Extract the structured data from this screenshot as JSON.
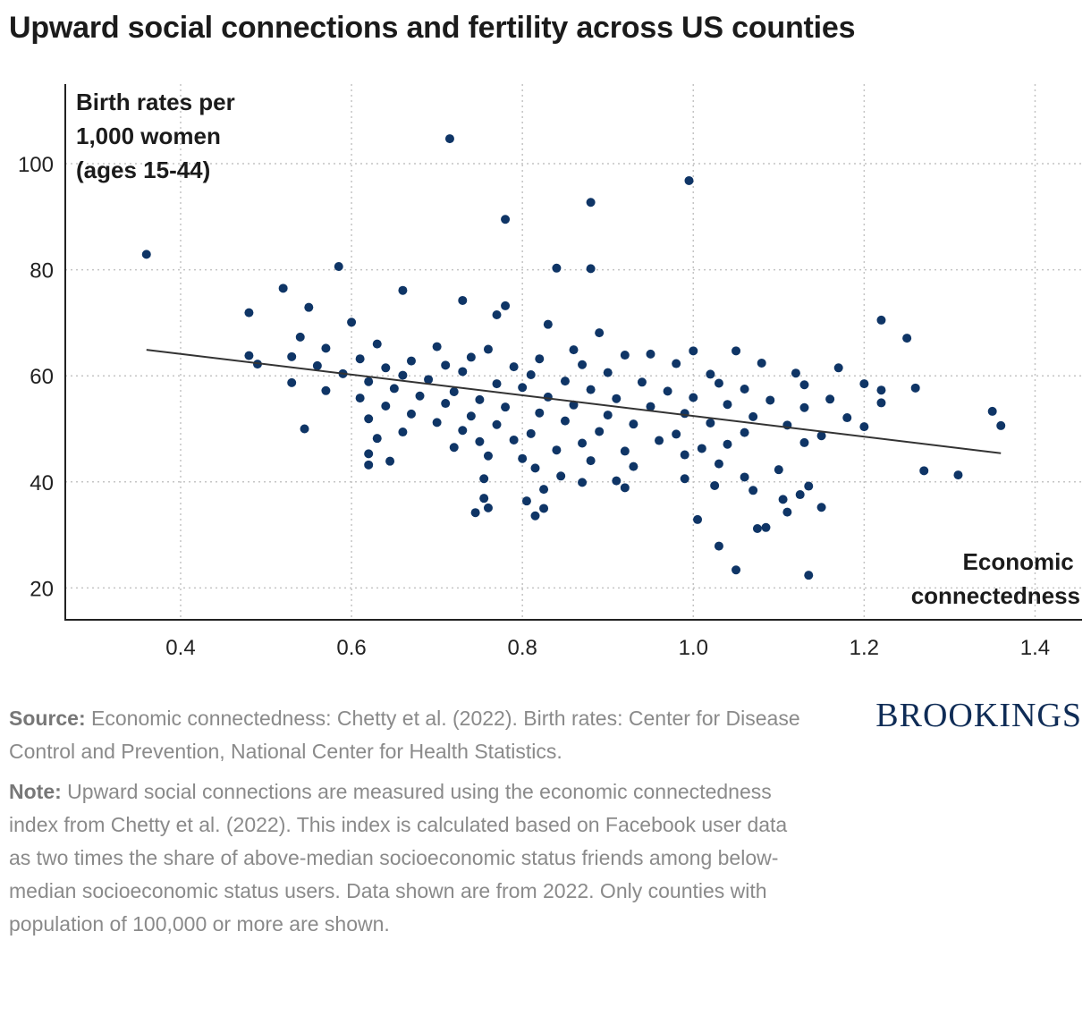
{
  "title": "Upward social connections and fertility across US counties",
  "chart_data": {
    "type": "scatter",
    "title": "Upward social connections and fertility across US counties",
    "ylabel_lines": [
      "Birth rates per",
      "1,000 women",
      "(ages 15-44)"
    ],
    "xlabel_lines": [
      "Economic",
      "connectedness"
    ],
    "xlim": [
      0.265,
      1.455
    ],
    "ylim": [
      14,
      115
    ],
    "x_ticks": [
      0.4,
      0.6,
      0.8,
      1.0,
      1.2,
      1.4
    ],
    "x_tick_labels": [
      "0.4",
      "0.6",
      "0.8",
      "1.0",
      "1.2",
      "1.4"
    ],
    "y_ticks": [
      20,
      40,
      60,
      80,
      100
    ],
    "y_tick_labels": [
      "20",
      "40",
      "60",
      "80",
      "100"
    ],
    "grid": true,
    "point_color": "#0f3566",
    "trendline": {
      "x": [
        0.36,
        1.36
      ],
      "y": [
        64.9,
        45.4
      ],
      "color": "#333333"
    },
    "points": [
      {
        "x": 0.715,
        "y": 104.7
      },
      {
        "x": 0.995,
        "y": 96.8
      },
      {
        "x": 0.88,
        "y": 92.7
      },
      {
        "x": 0.78,
        "y": 89.5
      },
      {
        "x": 0.36,
        "y": 82.9
      },
      {
        "x": 0.585,
        "y": 80.6
      },
      {
        "x": 0.84,
        "y": 80.3
      },
      {
        "x": 0.88,
        "y": 80.2
      },
      {
        "x": 0.52,
        "y": 76.5
      },
      {
        "x": 0.66,
        "y": 76.1
      },
      {
        "x": 0.73,
        "y": 74.2
      },
      {
        "x": 0.55,
        "y": 72.9
      },
      {
        "x": 0.78,
        "y": 73.2
      },
      {
        "x": 0.48,
        "y": 71.9
      },
      {
        "x": 0.77,
        "y": 71.5
      },
      {
        "x": 1.22,
        "y": 70.5
      },
      {
        "x": 0.6,
        "y": 70.1
      },
      {
        "x": 0.83,
        "y": 69.7
      },
      {
        "x": 1.25,
        "y": 67.1
      },
      {
        "x": 0.89,
        "y": 68.1
      },
      {
        "x": 0.54,
        "y": 67.3
      },
      {
        "x": 0.63,
        "y": 66.0
      },
      {
        "x": 0.7,
        "y": 65.5
      },
      {
        "x": 0.57,
        "y": 65.2
      },
      {
        "x": 0.76,
        "y": 65.0
      },
      {
        "x": 0.86,
        "y": 64.9
      },
      {
        "x": 1.0,
        "y": 64.7
      },
      {
        "x": 1.05,
        "y": 64.7
      },
      {
        "x": 0.48,
        "y": 63.8
      },
      {
        "x": 0.53,
        "y": 63.6
      },
      {
        "x": 0.61,
        "y": 63.2
      },
      {
        "x": 0.67,
        "y": 62.8
      },
      {
        "x": 0.74,
        "y": 63.5
      },
      {
        "x": 0.82,
        "y": 63.2
      },
      {
        "x": 0.92,
        "y": 63.9
      },
      {
        "x": 0.95,
        "y": 64.1
      },
      {
        "x": 0.49,
        "y": 62.2
      },
      {
        "x": 0.56,
        "y": 61.9
      },
      {
        "x": 0.64,
        "y": 61.5
      },
      {
        "x": 0.71,
        "y": 62.0
      },
      {
        "x": 0.79,
        "y": 61.7
      },
      {
        "x": 0.87,
        "y": 62.1
      },
      {
        "x": 0.98,
        "y": 62.3
      },
      {
        "x": 1.17,
        "y": 61.5
      },
      {
        "x": 1.08,
        "y": 62.4
      },
      {
        "x": 0.59,
        "y": 60.4
      },
      {
        "x": 0.66,
        "y": 60.1
      },
      {
        "x": 0.73,
        "y": 60.8
      },
      {
        "x": 0.81,
        "y": 60.2
      },
      {
        "x": 0.9,
        "y": 60.6
      },
      {
        "x": 1.02,
        "y": 60.3
      },
      {
        "x": 1.12,
        "y": 60.5
      },
      {
        "x": 0.53,
        "y": 58.7
      },
      {
        "x": 0.62,
        "y": 58.9
      },
      {
        "x": 0.69,
        "y": 59.3
      },
      {
        "x": 0.77,
        "y": 58.5
      },
      {
        "x": 0.85,
        "y": 59.0
      },
      {
        "x": 0.94,
        "y": 58.8
      },
      {
        "x": 1.03,
        "y": 58.6
      },
      {
        "x": 1.13,
        "y": 58.3
      },
      {
        "x": 1.2,
        "y": 58.5
      },
      {
        "x": 0.57,
        "y": 57.2
      },
      {
        "x": 0.65,
        "y": 57.6
      },
      {
        "x": 0.72,
        "y": 57.0
      },
      {
        "x": 0.8,
        "y": 57.8
      },
      {
        "x": 0.88,
        "y": 57.4
      },
      {
        "x": 0.97,
        "y": 57.1
      },
      {
        "x": 1.06,
        "y": 57.5
      },
      {
        "x": 1.26,
        "y": 57.7
      },
      {
        "x": 1.22,
        "y": 57.3
      },
      {
        "x": 0.61,
        "y": 55.8
      },
      {
        "x": 0.68,
        "y": 56.2
      },
      {
        "x": 0.75,
        "y": 55.5
      },
      {
        "x": 0.83,
        "y": 56.0
      },
      {
        "x": 0.91,
        "y": 55.7
      },
      {
        "x": 1.0,
        "y": 55.9
      },
      {
        "x": 1.09,
        "y": 55.4
      },
      {
        "x": 1.16,
        "y": 55.6
      },
      {
        "x": 0.64,
        "y": 54.3
      },
      {
        "x": 0.71,
        "y": 54.8
      },
      {
        "x": 0.78,
        "y": 54.1
      },
      {
        "x": 0.86,
        "y": 54.5
      },
      {
        "x": 0.95,
        "y": 54.2
      },
      {
        "x": 1.04,
        "y": 54.6
      },
      {
        "x": 1.13,
        "y": 54.0
      },
      {
        "x": 1.22,
        "y": 54.9
      },
      {
        "x": 1.35,
        "y": 53.3
      },
      {
        "x": 0.67,
        "y": 52.8
      },
      {
        "x": 0.74,
        "y": 52.4
      },
      {
        "x": 0.82,
        "y": 53.0
      },
      {
        "x": 0.9,
        "y": 52.6
      },
      {
        "x": 0.99,
        "y": 52.9
      },
      {
        "x": 1.07,
        "y": 52.3
      },
      {
        "x": 1.18,
        "y": 52.1
      },
      {
        "x": 0.62,
        "y": 51.9
      },
      {
        "x": 0.7,
        "y": 51.2
      },
      {
        "x": 0.77,
        "y": 50.8
      },
      {
        "x": 0.85,
        "y": 51.5
      },
      {
        "x": 0.93,
        "y": 50.9
      },
      {
        "x": 1.02,
        "y": 51.1
      },
      {
        "x": 1.11,
        "y": 50.7
      },
      {
        "x": 1.36,
        "y": 50.6
      },
      {
        "x": 1.2,
        "y": 50.4
      },
      {
        "x": 0.545,
        "y": 50.0
      },
      {
        "x": 0.66,
        "y": 49.4
      },
      {
        "x": 0.73,
        "y": 49.7
      },
      {
        "x": 0.81,
        "y": 49.1
      },
      {
        "x": 0.89,
        "y": 49.5
      },
      {
        "x": 0.98,
        "y": 49.0
      },
      {
        "x": 1.06,
        "y": 49.3
      },
      {
        "x": 1.15,
        "y": 48.7
      },
      {
        "x": 0.63,
        "y": 48.2
      },
      {
        "x": 0.75,
        "y": 47.6
      },
      {
        "x": 0.79,
        "y": 47.9
      },
      {
        "x": 0.87,
        "y": 47.3
      },
      {
        "x": 0.96,
        "y": 47.8
      },
      {
        "x": 1.04,
        "y": 47.1
      },
      {
        "x": 1.13,
        "y": 47.4
      },
      {
        "x": 0.72,
        "y": 46.5
      },
      {
        "x": 0.84,
        "y": 46.0
      },
      {
        "x": 0.92,
        "y": 45.8
      },
      {
        "x": 1.01,
        "y": 46.3
      },
      {
        "x": 0.62,
        "y": 45.3
      },
      {
        "x": 0.76,
        "y": 44.9
      },
      {
        "x": 0.8,
        "y": 44.4
      },
      {
        "x": 0.88,
        "y": 44.0
      },
      {
        "x": 0.99,
        "y": 45.1
      },
      {
        "x": 0.62,
        "y": 43.2
      },
      {
        "x": 0.645,
        "y": 43.9
      },
      {
        "x": 0.815,
        "y": 42.6
      },
      {
        "x": 0.93,
        "y": 42.9
      },
      {
        "x": 1.03,
        "y": 43.4
      },
      {
        "x": 1.1,
        "y": 42.3
      },
      {
        "x": 1.27,
        "y": 42.1
      },
      {
        "x": 0.845,
        "y": 41.1
      },
      {
        "x": 0.91,
        "y": 40.2
      },
      {
        "x": 0.99,
        "y": 40.6
      },
      {
        "x": 1.06,
        "y": 40.9
      },
      {
        "x": 1.31,
        "y": 41.3
      },
      {
        "x": 0.755,
        "y": 40.6
      },
      {
        "x": 0.87,
        "y": 39.9
      },
      {
        "x": 1.025,
        "y": 39.3
      },
      {
        "x": 1.135,
        "y": 39.2
      },
      {
        "x": 0.825,
        "y": 38.6
      },
      {
        "x": 0.92,
        "y": 38.9
      },
      {
        "x": 1.07,
        "y": 38.4
      },
      {
        "x": 1.125,
        "y": 37.6
      },
      {
        "x": 0.755,
        "y": 36.9
      },
      {
        "x": 0.805,
        "y": 36.4
      },
      {
        "x": 1.105,
        "y": 36.7
      },
      {
        "x": 0.76,
        "y": 35.1
      },
      {
        "x": 0.825,
        "y": 35.0
      },
      {
        "x": 1.15,
        "y": 35.2
      },
      {
        "x": 0.745,
        "y": 34.2
      },
      {
        "x": 0.815,
        "y": 33.6
      },
      {
        "x": 1.11,
        "y": 34.3
      },
      {
        "x": 1.005,
        "y": 32.9
      },
      {
        "x": 1.075,
        "y": 31.2
      },
      {
        "x": 1.085,
        "y": 31.4
      },
      {
        "x": 1.03,
        "y": 27.9
      },
      {
        "x": 1.05,
        "y": 23.4
      },
      {
        "x": 1.135,
        "y": 22.4
      }
    ]
  },
  "footer": {
    "source_label": "Source:",
    "source_text": " Economic connectedness: Chetty et al. (2022). Birth rates: Center for Disease Control and Prevention, National Center for Health Statistics.",
    "note_label": "Note:",
    "note_text": " Upward social connections are measured using the economic connectedness index from Chetty et al. (2022). This index is calculated based on Facebook user data as two times the share of above-median socioeconomic status friends among below-median socioeconomic status users. Data shown are from 2022. Only counties with population of 100,000 or more are shown."
  },
  "brand": "BROOKINGS"
}
